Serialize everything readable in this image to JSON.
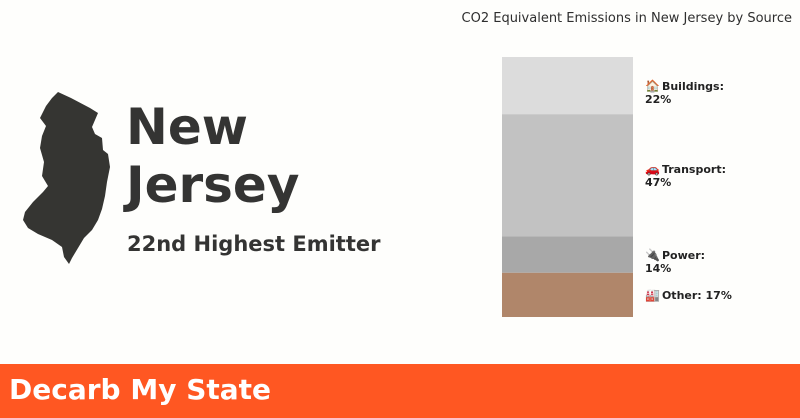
{
  "state": {
    "name_line1": "New",
    "name_line2": "Jersey",
    "rank": "22nd Highest Emitter"
  },
  "chart_data": {
    "type": "bar",
    "orientation": "stacked-vertical",
    "title": "CO2 Equivalent Emissions in New Jersey by Source",
    "unit": "%",
    "segments": [
      {
        "name": "Buildings",
        "label": "Buildings: 22%",
        "value": 22,
        "color": "#dcdcdc",
        "icon": "🏠"
      },
      {
        "name": "Transport",
        "label": "Transport: 47%",
        "value": 47,
        "color": "#c2c2c2",
        "icon": "🚗"
      },
      {
        "name": "Power",
        "label": "Power: 14%",
        "value": 14,
        "color": "#a8a8a8",
        "icon": "🔌"
      },
      {
        "name": "Other",
        "label": "Other: 17%",
        "value": 17,
        "color": "#b0866a",
        "icon": "🏭"
      }
    ]
  },
  "footer": {
    "brand": "Decarb My State",
    "color": "#ff5722"
  }
}
